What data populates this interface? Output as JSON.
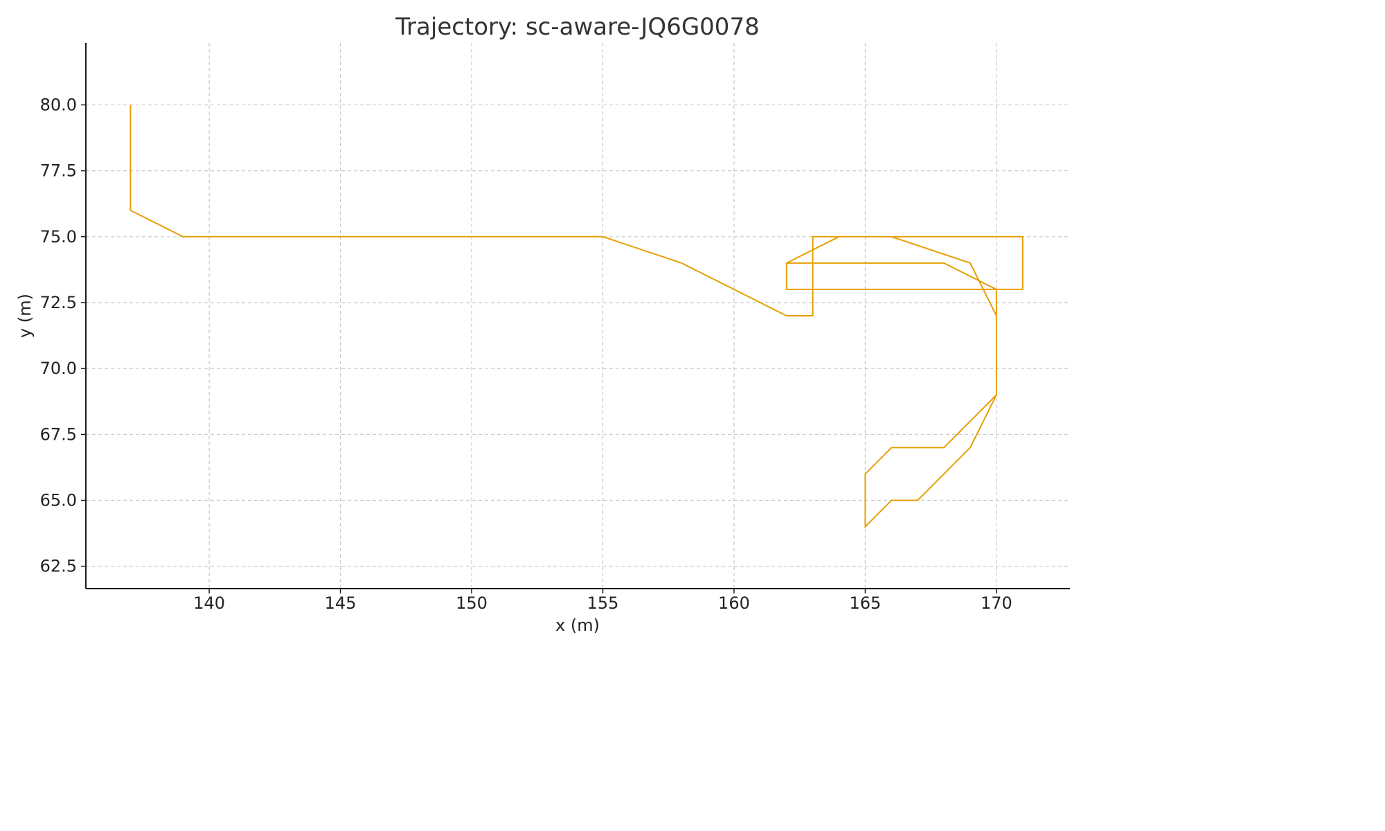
{
  "chart_data": {
    "type": "line",
    "title": "Trajectory: sc-aware-JQ6G0078",
    "xlabel": "x (m)",
    "ylabel": "y (m)",
    "xlim": [
      135.3,
      172.8
    ],
    "ylim": [
      61.65,
      82.35
    ],
    "x_ticks": [
      140,
      145,
      150,
      155,
      160,
      165,
      170
    ],
    "x_tick_labels": [
      "140",
      "145",
      "150",
      "155",
      "160",
      "165",
      "170"
    ],
    "y_ticks": [
      62.5,
      65.0,
      67.5,
      70.0,
      72.5,
      75.0,
      77.5,
      80.0
    ],
    "y_tick_labels": [
      "62.5",
      "65.0",
      "67.5",
      "70.0",
      "72.5",
      "75.0",
      "77.5",
      "80.0"
    ],
    "grid": true,
    "series": [
      {
        "color": "#E69F00",
        "x": [
          137,
          137,
          139,
          155,
          158,
          162,
          163,
          163,
          171,
          171,
          162,
          162,
          168,
          170,
          170,
          169,
          167,
          166,
          165,
          165,
          166,
          168,
          170,
          170,
          169,
          166,
          164,
          162
        ],
        "y": [
          80,
          76,
          75,
          75,
          74,
          72,
          72,
          75,
          75,
          73,
          73,
          74,
          74,
          73,
          69,
          67,
          65,
          65,
          64,
          66,
          67,
          67,
          69,
          72,
          74,
          75,
          75,
          74
        ]
      }
    ]
  }
}
